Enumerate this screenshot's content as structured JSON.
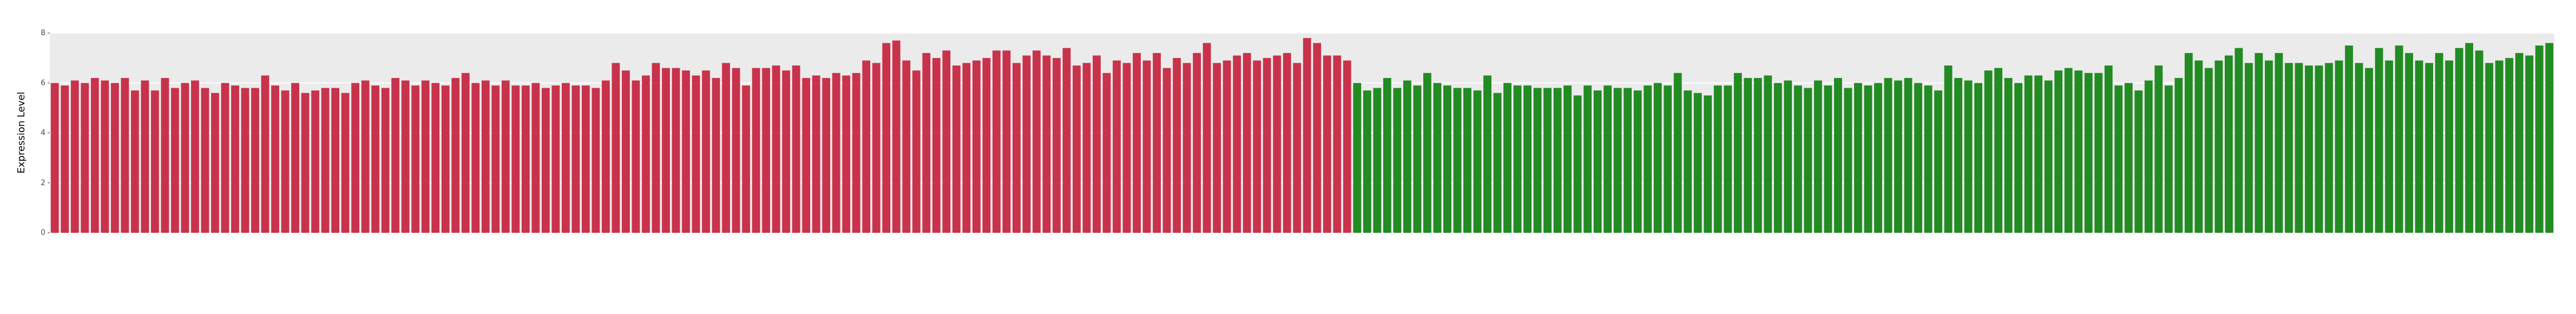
{
  "chart_data": {
    "type": "bar",
    "y_label": "Expression Level",
    "categories": [
      null,
      null,
      null,
      null,
      null,
      null,
      null,
      null,
      null,
      null,
      null,
      null,
      null,
      null,
      null,
      null,
      null,
      null,
      null,
      null,
      null,
      null,
      null,
      null,
      null,
      null,
      null,
      null,
      null,
      null,
      null,
      null,
      null,
      null,
      null,
      null,
      null,
      null,
      null,
      null,
      null,
      null,
      null,
      null,
      null,
      null,
      null,
      null,
      null,
      null,
      null,
      null,
      null,
      null,
      null,
      null,
      null,
      null,
      null,
      null,
      null,
      null,
      null,
      null,
      null,
      null,
      null,
      null,
      null,
      null,
      null,
      null,
      null,
      null,
      null,
      null,
      null,
      null,
      null,
      null,
      null,
      null,
      null,
      null,
      null,
      null,
      null,
      null,
      null,
      null,
      null,
      null,
      null,
      null,
      null,
      null,
      null,
      null,
      null,
      null,
      null,
      null,
      null,
      null,
      null,
      null,
      null,
      null,
      null,
      null,
      null,
      null,
      null,
      null,
      null,
      null,
      null,
      null,
      null,
      null,
      null,
      null,
      null,
      null,
      null,
      null,
      null,
      null,
      null,
      null,
      null,
      null,
      null,
      null,
      null,
      null,
      null,
      null,
      null,
      null,
      null,
      null,
      null,
      null,
      null,
      null,
      null,
      null,
      null,
      null,
      null,
      null,
      null,
      null,
      null,
      null,
      null,
      null,
      null,
      null,
      null,
      null,
      null,
      null,
      null,
      null,
      null,
      null,
      null,
      null,
      null,
      null,
      null,
      null,
      null,
      null,
      null,
      null,
      null,
      null,
      null,
      null,
      null,
      null,
      null,
      null,
      null,
      null,
      null,
      null,
      null,
      null,
      null,
      null,
      null,
      null,
      null,
      null,
      null,
      null,
      null,
      null,
      null,
      null,
      null,
      null,
      null,
      null,
      null,
      null,
      null,
      null,
      null,
      null,
      null,
      null,
      null,
      null,
      null,
      null,
      null,
      null,
      null,
      null,
      null,
      null,
      null,
      null,
      null,
      null,
      null,
      null,
      null,
      null,
      null,
      null,
      null,
      null,
      null,
      null,
      null,
      null,
      null,
      null,
      null,
      null,
      null,
      null,
      null,
      null
    ],
    "series": [
      {
        "color": "#c8334b",
        "values": [
          6.0,
          5.9,
          6.1,
          6.0,
          6.2,
          6.1,
          6.0,
          6.2,
          5.7,
          6.1,
          5.7,
          6.2,
          5.8,
          6.0,
          6.1,
          5.8,
          5.6,
          6.0,
          5.9,
          5.8,
          5.8,
          6.3,
          5.9,
          5.7,
          6.0,
          5.6,
          5.7,
          5.8,
          5.8,
          5.6,
          6.0,
          6.1,
          5.9,
          5.8,
          6.2,
          6.1,
          5.9,
          6.1,
          6.0,
          5.9,
          6.2,
          6.4,
          6.0,
          6.1,
          5.9,
          6.1,
          5.9,
          5.9,
          6.0,
          5.8,
          5.9,
          6.0,
          5.9,
          5.9,
          5.8,
          6.1,
          6.8,
          6.5,
          6.1,
          6.3,
          6.8,
          6.6,
          6.6,
          6.5,
          6.3,
          6.5,
          6.2,
          6.8,
          6.6,
          5.9,
          6.6,
          6.6,
          6.7,
          6.5,
          6.7,
          6.2,
          6.3,
          6.2,
          6.4,
          6.3,
          6.4,
          6.9,
          6.8,
          7.6,
          7.7,
          6.9,
          6.5,
          7.2,
          7.0,
          7.3,
          6.7,
          6.8,
          6.9,
          7.0,
          7.3,
          7.3,
          6.8,
          7.1,
          7.3,
          7.1,
          7.0,
          7.4,
          6.7,
          6.8,
          7.1,
          6.4,
          6.9,
          6.8,
          7.2,
          6.9,
          7.2,
          6.6,
          7.0,
          6.8,
          7.2,
          7.6,
          6.8,
          6.9,
          7.1,
          7.2,
          6.9,
          7.0,
          7.1,
          7.2,
          6.8,
          7.8,
          7.6,
          7.1,
          7.1,
          6.9,
          null,
          null,
          null,
          null,
          null,
          null,
          null,
          null,
          null,
          null,
          null,
          null,
          null,
          null,
          null,
          null,
          null,
          null,
          null,
          null,
          null,
          null,
          null,
          null,
          null,
          null,
          null,
          null,
          null,
          null,
          null,
          null,
          null,
          null,
          null,
          null,
          null,
          null,
          null,
          null,
          null,
          null,
          null,
          null,
          null,
          null,
          null,
          null,
          null,
          null,
          null,
          null,
          null,
          null,
          null,
          null,
          null,
          null,
          null,
          null,
          null,
          null,
          null,
          null,
          null,
          null,
          null,
          null,
          null,
          null,
          null,
          null,
          null,
          null,
          null,
          null,
          null,
          null,
          null,
          null,
          null,
          null,
          null,
          null,
          null,
          null,
          null,
          null,
          null,
          null,
          null,
          null,
          null,
          null,
          null,
          null,
          null,
          null,
          null,
          null,
          null,
          null,
          null,
          null,
          null,
          null,
          null,
          null,
          null,
          null,
          null,
          null,
          null,
          null,
          null,
          null,
          null,
          null,
          null,
          null
        ]
      },
      {
        "color": "#228b22",
        "values": [
          null,
          null,
          null,
          null,
          null,
          null,
          null,
          null,
          null,
          null,
          null,
          null,
          null,
          null,
          null,
          null,
          null,
          null,
          null,
          null,
          null,
          null,
          null,
          null,
          null,
          null,
          null,
          null,
          null,
          null,
          null,
          null,
          null,
          null,
          null,
          null,
          null,
          null,
          null,
          null,
          null,
          null,
          null,
          null,
          null,
          null,
          null,
          null,
          null,
          null,
          null,
          null,
          null,
          null,
          null,
          null,
          null,
          null,
          null,
          null,
          null,
          null,
          null,
          null,
          null,
          null,
          null,
          null,
          null,
          null,
          null,
          null,
          null,
          null,
          null,
          null,
          null,
          null,
          null,
          null,
          null,
          null,
          null,
          null,
          null,
          null,
          null,
          null,
          null,
          null,
          null,
          null,
          null,
          null,
          null,
          null,
          null,
          null,
          null,
          null,
          null,
          null,
          null,
          null,
          null,
          null,
          null,
          null,
          null,
          null,
          null,
          null,
          null,
          null,
          null,
          null,
          null,
          null,
          null,
          null,
          null,
          null,
          null,
          null,
          null,
          null,
          null,
          null,
          null,
          null,
          6.0,
          5.7,
          5.8,
          6.2,
          5.8,
          6.1,
          5.9,
          6.4,
          6.0,
          5.9,
          5.8,
          5.8,
          5.7,
          6.3,
          5.6,
          6.0,
          5.9,
          5.9,
          5.8,
          5.8,
          5.8,
          5.9,
          5.5,
          5.9,
          5.7,
          5.9,
          5.8,
          5.8,
          5.7,
          5.9,
          6.0,
          5.9,
          6.4,
          5.7,
          5.6,
          5.5,
          5.9,
          5.9,
          6.4,
          6.2,
          6.2,
          6.3,
          6.0,
          6.1,
          5.9,
          5.8,
          6.1,
          5.9,
          6.2,
          5.8,
          6.0,
          5.9,
          6.0,
          6.2,
          6.1,
          6.2,
          6.0,
          5.9,
          5.7,
          6.7,
          6.2,
          6.1,
          6.0,
          6.5,
          6.6,
          6.2,
          6.0,
          6.3,
          6.3,
          6.1,
          6.5,
          6.6,
          6.5,
          6.4,
          6.4,
          6.7,
          5.9,
          6.0,
          5.7,
          6.1,
          6.7,
          5.9,
          6.2,
          7.2,
          6.9,
          6.6,
          6.9,
          7.1,
          7.4,
          6.8,
          7.2,
          6.9,
          7.2,
          6.8,
          6.8,
          6.7,
          6.7,
          6.8,
          6.9,
          7.5,
          6.8,
          6.6,
          7.4,
          6.9,
          7.5,
          7.2,
          6.9,
          6.8,
          7.2,
          6.9,
          7.4,
          7.6,
          7.3,
          6.8,
          6.9,
          7.0,
          7.2,
          7.1,
          7.5,
          7.6
        ]
      }
    ],
    "ylim": [
      0,
      8
    ],
    "yticks": [
      0,
      2,
      4,
      6,
      8
    ],
    "grid": true
  }
}
